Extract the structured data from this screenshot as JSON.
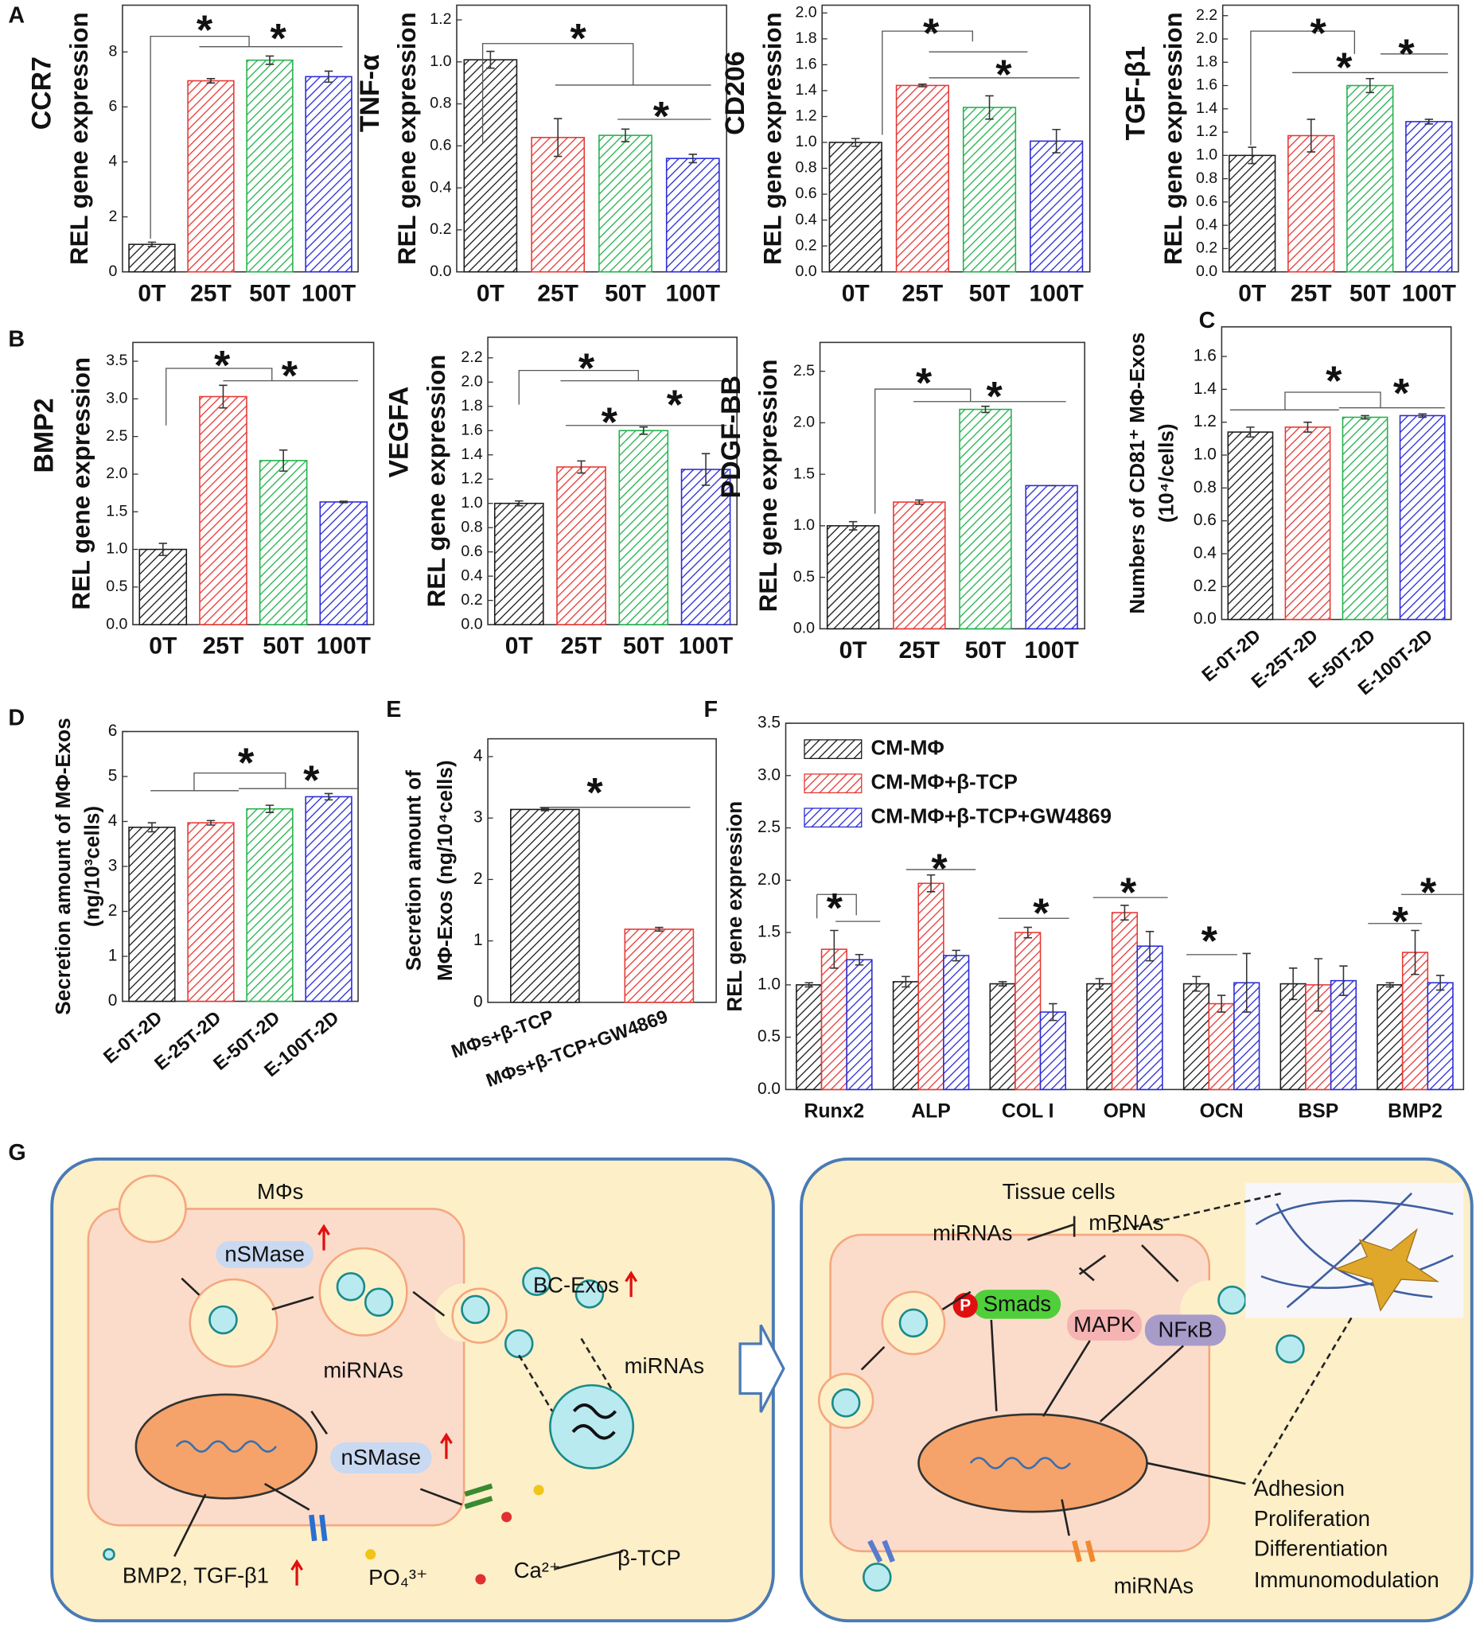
{
  "chart_data": [
    {
      "type": "bar",
      "panel": "A",
      "title": "CCR7",
      "ylabel": [
        "REL gene expression"
      ],
      "categories": [
        "0T",
        "25T",
        "50T",
        "100T"
      ],
      "values": [
        1.0,
        6.95,
        7.7,
        7.1
      ],
      "errors": [
        0.08,
        0.08,
        0.15,
        0.2
      ],
      "colors": [
        "#1a1a1a",
        "#e53935",
        "#22b14c",
        "#2a2ad4"
      ],
      "hatch": true,
      "ylim": [
        0,
        9.7
      ],
      "yticks": [
        0,
        2,
        4,
        6,
        8
      ],
      "annotations": [
        "*",
        "*"
      ]
    },
    {
      "type": "bar",
      "title": "TNF-α",
      "ylabel": [
        "REL gene expression"
      ],
      "categories": [
        "0T",
        "25T",
        "50T",
        "100T"
      ],
      "values": [
        1.01,
        0.64,
        0.65,
        0.54
      ],
      "errors": [
        0.04,
        0.09,
        0.03,
        0.02
      ],
      "colors": [
        "#1a1a1a",
        "#e53935",
        "#22b14c",
        "#2a2ad4"
      ],
      "hatch": true,
      "ylim": [
        0,
        1.27
      ],
      "yticks": [
        {
          "value": 0,
          "label": "0.0"
        },
        0.2,
        0.4,
        0.6,
        0.8,
        {
          "value": 1,
          "label": "1.0"
        },
        1.2
      ],
      "annotations": [
        "*",
        "*"
      ]
    },
    {
      "type": "bar",
      "title": "CD206",
      "ylabel": [
        "REL gene expression"
      ],
      "categories": [
        "0T",
        "25T",
        "50T",
        "100T"
      ],
      "values": [
        1.0,
        1.44,
        1.27,
        1.01
      ],
      "errors": [
        0.03,
        0.01,
        0.09,
        0.09
      ],
      "colors": [
        "#1a1a1a",
        "#e53935",
        "#22b14c",
        "#2a2ad4"
      ],
      "hatch": true,
      "ylim": [
        0,
        2.06
      ],
      "yticks": [
        {
          "value": 0,
          "label": "0.0"
        },
        0.2,
        0.4,
        0.6,
        0.8,
        {
          "value": 1,
          "label": "1.0"
        },
        1.2,
        1.4,
        1.6,
        1.8,
        {
          "value": 2,
          "label": "2.0"
        }
      ],
      "annotations": [
        "*",
        "*"
      ]
    },
    {
      "type": "bar",
      "title": "TGF-β1",
      "ylabel": [
        "REL gene expression"
      ],
      "categories": [
        "0T",
        "25T",
        "50T",
        "100T"
      ],
      "values": [
        1.0,
        1.17,
        1.6,
        1.29
      ],
      "errors": [
        0.07,
        0.14,
        0.06,
        0.02
      ],
      "colors": [
        "#1a1a1a",
        "#e53935",
        "#22b14c",
        "#2a2ad4"
      ],
      "hatch": true,
      "ylim": [
        0,
        2.29
      ],
      "yticks": [
        {
          "value": 0,
          "label": "0.0"
        },
        0.2,
        0.4,
        0.6,
        0.8,
        {
          "value": 1,
          "label": "1.0"
        },
        1.2,
        1.4,
        1.6,
        1.8,
        {
          "value": 2,
          "label": "2.0"
        },
        2.2
      ],
      "annotations": [
        "*",
        "*",
        "*"
      ]
    },
    {
      "type": "bar",
      "panel": "B",
      "title": "BMP2",
      "ylabel": [
        "REL gene expression"
      ],
      "categories": [
        "0T",
        "25T",
        "50T",
        "100T"
      ],
      "values": [
        1.0,
        3.03,
        2.18,
        1.63
      ],
      "errors": [
        0.08,
        0.15,
        0.14,
        0.01
      ],
      "colors": [
        "#1a1a1a",
        "#e53935",
        "#22b14c",
        "#2a2ad4"
      ],
      "hatch": true,
      "ylim": [
        0,
        3.75
      ],
      "yticks": [
        {
          "value": 0,
          "label": "0.0"
        },
        0.5,
        {
          "value": 1,
          "label": "1.0"
        },
        1.5,
        {
          "value": 2,
          "label": "2.0"
        },
        2.5,
        {
          "value": 3,
          "label": "3.0"
        },
        3.5
      ],
      "annotations": [
        "*",
        "*"
      ]
    },
    {
      "type": "bar",
      "title": "VEGFA",
      "ylabel": [
        "REL gene expression"
      ],
      "categories": [
        "0T",
        "25T",
        "50T",
        "100T"
      ],
      "values": [
        1.0,
        1.3,
        1.6,
        1.28
      ],
      "errors": [
        0.02,
        0.05,
        0.03,
        0.13
      ],
      "colors": [
        "#1a1a1a",
        "#e53935",
        "#22b14c",
        "#2a2ad4"
      ],
      "hatch": true,
      "ylim": [
        0,
        2.37
      ],
      "yticks": [
        {
          "value": 0,
          "label": "0.0"
        },
        0.2,
        0.4,
        0.6,
        0.8,
        {
          "value": 1,
          "label": "1.0"
        },
        1.2,
        1.4,
        1.6,
        1.8,
        {
          "value": 2,
          "label": "2.0"
        },
        2.2
      ],
      "annotations": [
        "*",
        "*",
        "*"
      ]
    },
    {
      "type": "bar",
      "title": "PDGF-BB",
      "ylabel": [
        "REL gene expression"
      ],
      "categories": [
        "0T",
        "25T",
        "50T",
        "100T"
      ],
      "values": [
        1.0,
        1.23,
        2.13,
        1.39
      ],
      "errors": [
        0.04,
        0.02,
        0.03,
        0
      ],
      "colors": [
        "#1a1a1a",
        "#e53935",
        "#22b14c",
        "#2a2ad4"
      ],
      "hatch": true,
      "ylim": [
        0,
        2.78
      ],
      "yticks": [
        {
          "value": 0,
          "label": "0.0"
        },
        0.5,
        {
          "value": 1,
          "label": "1.0"
        },
        1.5,
        {
          "value": 2,
          "label": "2.0"
        },
        2.5
      ],
      "annotations": [
        "*",
        "*"
      ]
    },
    {
      "type": "bar",
      "panel": "C",
      "ylabel": [
        "Numbers of CD81⁺ MΦ-Exos",
        "(10⁴/cells)"
      ],
      "categories": [
        "E-0T-2D",
        "E-25T-2D",
        "E-50T-2D",
        "E-100T-2D"
      ],
      "values": [
        1.14,
        1.17,
        1.23,
        1.24
      ],
      "errors": [
        0.03,
        0.03,
        0.01,
        0.01
      ],
      "colors": [
        "#1a1a1a",
        "#e53935",
        "#22b14c",
        "#2a2ad4"
      ],
      "hatch": true,
      "ylim": [
        0,
        1.78
      ],
      "yticks": [
        {
          "value": 0,
          "label": "0.0"
        },
        0.2,
        0.4,
        0.6,
        0.8,
        {
          "value": 1,
          "label": "1.0"
        },
        1.2,
        1.4,
        1.6
      ],
      "annotations": [
        "*",
        "*"
      ]
    },
    {
      "type": "bar",
      "panel": "D",
      "ylabel": [
        "Secretion amount of MΦ-Exos",
        "(ng/10³cells)"
      ],
      "categories": [
        "E-0T-2D",
        "E-25T-2D",
        "E-50T-2D",
        "E-100T-2D"
      ],
      "values": [
        3.87,
        3.97,
        4.28,
        4.55
      ],
      "errors": [
        0.1,
        0.05,
        0.08,
        0.07
      ],
      "colors": [
        "#1a1a1a",
        "#e53935",
        "#22b14c",
        "#2a2ad4"
      ],
      "hatch": true,
      "ylim": [
        0,
        6
      ],
      "yticks": [
        0,
        1,
        2,
        3,
        4,
        5,
        6
      ],
      "annotations": [
        "*",
        "*"
      ]
    },
    {
      "type": "bar",
      "panel": "E",
      "ylabel": [
        "Secretion amount of",
        "MΦ-Exos (ng/10⁴cells)"
      ],
      "categories": [
        "MΦs+β-TCP",
        "MΦs+β-TCP+GW4869"
      ],
      "values": [
        3.14,
        1.19
      ],
      "errors": [
        0.02,
        0.03
      ],
      "colors": [
        "#1a1a1a",
        "#e53935"
      ],
      "hatch": true,
      "ylim": [
        0,
        4.29
      ],
      "yticks": [
        0,
        1,
        2,
        3,
        4
      ],
      "annotations": [
        "*"
      ]
    },
    {
      "type": "grouped_bar",
      "panel": "F",
      "ylabel": [
        "REL gene expression"
      ],
      "categories": [
        "Runx2",
        "ALP",
        "COL I",
        "OPN",
        "OCN",
        "BSP",
        "BMP2"
      ],
      "series": [
        {
          "name": "CM-MΦ",
          "color": "#1a1a1a",
          "values": [
            1.0,
            1.03,
            1.01,
            1.01,
            1.01,
            1.01,
            1.0
          ],
          "errors": [
            0.02,
            0.05,
            0.02,
            0.05,
            0.07,
            0.15,
            0.02
          ]
        },
        {
          "name": "CM-MΦ+β-TCP",
          "color": "#e53935",
          "values": [
            1.34,
            1.97,
            1.5,
            1.69,
            0.82,
            1.0,
            1.31
          ],
          "errors": [
            0.18,
            0.08,
            0.05,
            0.07,
            0.08,
            0.25,
            0.21
          ]
        },
        {
          "name": "CM-MΦ+β-TCP+GW4869",
          "color": "#2a2ad4",
          "values": [
            1.24,
            1.28,
            0.74,
            1.37,
            1.02,
            1.04,
            1.02
          ],
          "errors": [
            0.05,
            0.05,
            0.08,
            0.14,
            0.28,
            0.14,
            0.07
          ]
        }
      ],
      "hatch": true,
      "legend": "upper left",
      "ylim": [
        0,
        3.5
      ],
      "yticks": [
        {
          "value": 0,
          "label": "0.0"
        },
        0.5,
        {
          "value": 1,
          "label": "1.0"
        },
        1.5,
        {
          "value": 2,
          "label": "2.0"
        },
        2.5,
        {
          "value": 3,
          "label": "3.0"
        },
        3.5
      ],
      "annotations": [
        "*",
        "*",
        "*",
        "*",
        "*",
        "*",
        "*"
      ]
    }
  ],
  "diagram": {
    "label": "G",
    "left": {
      "title": "MΦs",
      "nsmase_top": "nSMase",
      "bc_exos": "BC-Exos",
      "mirnas_inner": "miRNAs",
      "mirnas_vesicle": "miRNAs",
      "nsmase_bottom": "nSMase",
      "secreted": "BMP2, TGF-β1",
      "phosphate": "PO₄³⁺",
      "calcium": "Ca²⁺",
      "material": "β-TCP"
    },
    "right": {
      "title": "Tissue cells",
      "mirnas": "miRNAs",
      "mrnas": "mRNAs",
      "phospho": "P",
      "smads": "Smads",
      "mapk": "MAPK",
      "nfkb": "NFκB",
      "outcomes": [
        "Adhesion",
        "Proliferation",
        "Differentiation",
        "Immunomodulation"
      ],
      "mirnas_bottom": "miRNAs"
    }
  }
}
